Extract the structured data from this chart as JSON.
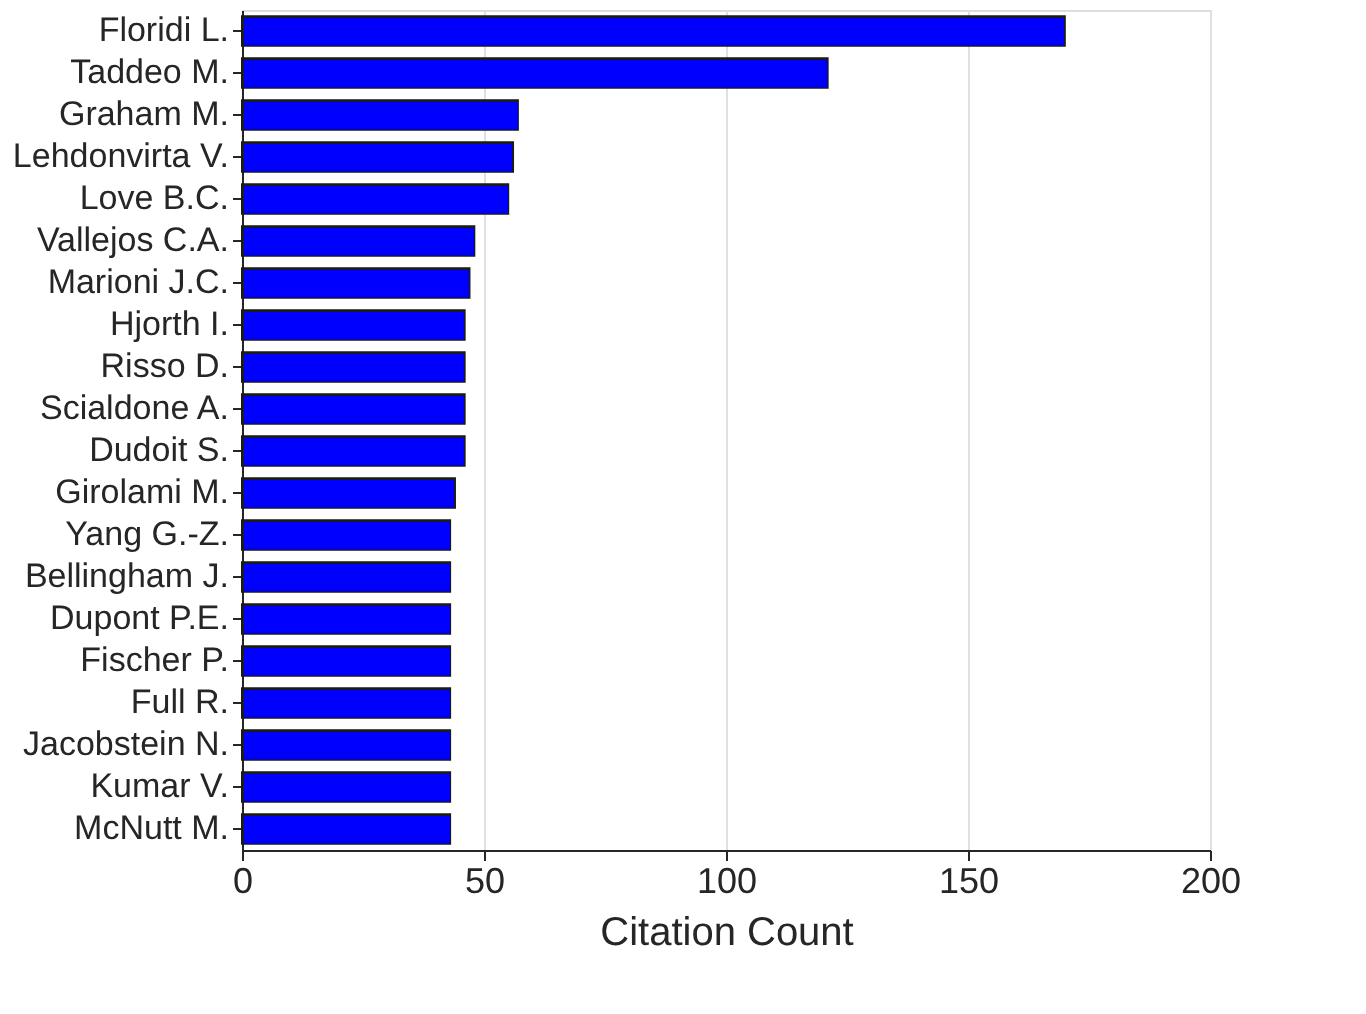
{
  "chart_data": {
    "type": "bar",
    "orientation": "horizontal",
    "xlabel": "Citation Count",
    "categories": [
      "Floridi L.",
      "Taddeo M.",
      "Graham M.",
      "Lehdonvirta V.",
      "Love B.C.",
      "Vallejos C.A.",
      "Marioni J.C.",
      "Hjorth I.",
      "Risso D.",
      "Scialdone A.",
      "Dudoit S.",
      "Girolami M.",
      "Yang G.-Z.",
      "Bellingham J.",
      "Dupont P.E.",
      "Fischer P.",
      "Full R.",
      "Jacobstein N.",
      "Kumar V.",
      "McNutt M."
    ],
    "values": [
      170,
      121,
      57,
      56,
      55,
      48,
      47,
      46,
      46,
      46,
      46,
      44,
      43,
      43,
      43,
      43,
      43,
      43,
      43,
      43
    ],
    "color": "#0000ff",
    "xlim": [
      0,
      200
    ],
    "xticks": [
      0,
      50,
      100,
      150,
      200
    ],
    "grid": "x"
  }
}
